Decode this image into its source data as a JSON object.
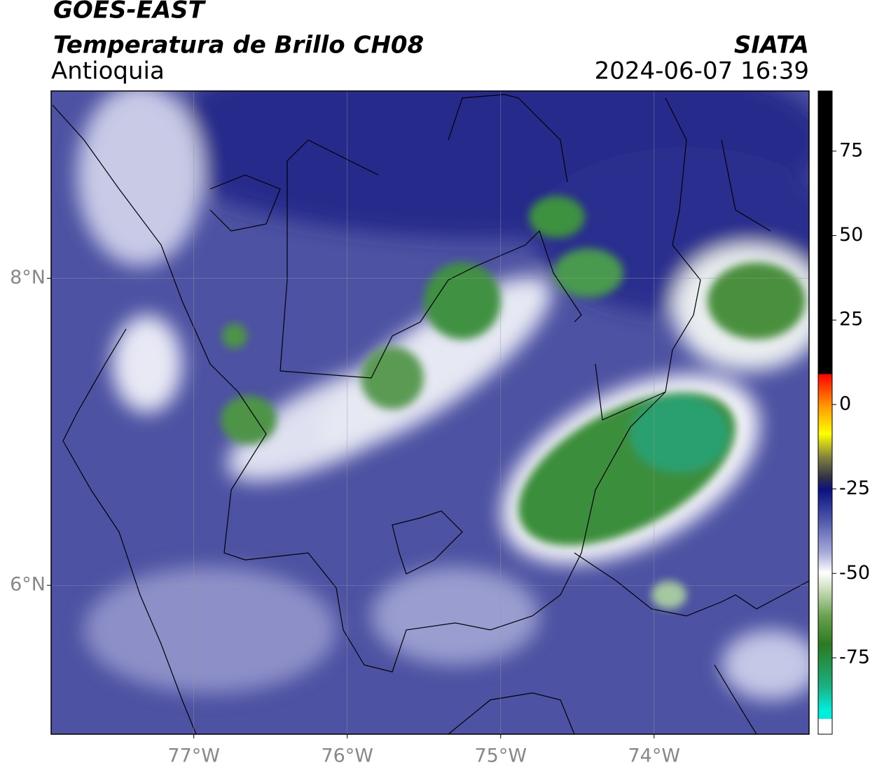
{
  "header": {
    "satellite": "GOES-EAST",
    "product": "Temperatura de Brillo CH08",
    "region": "Antioquia",
    "agency": "SIATA",
    "datetime": "2024-06-07 16:39"
  },
  "map": {
    "xlim": [
      -77.93,
      -72.99
    ],
    "ylim": [
      5.03,
      9.22
    ],
    "xticks": [
      {
        "value": -77,
        "label": "77°W"
      },
      {
        "value": -76,
        "label": "76°W"
      },
      {
        "value": -75,
        "label": "75°W"
      },
      {
        "value": -74,
        "label": "74°W"
      }
    ],
    "yticks": [
      {
        "value": 6,
        "label": "6°N"
      },
      {
        "value": 8,
        "label": "8°N"
      }
    ],
    "grid": true
  },
  "colorbar": {
    "lim": [
      -97.6,
      92.8
    ],
    "ticks": [
      -75,
      -50,
      -25,
      0,
      25,
      50,
      75
    ]
  }
}
